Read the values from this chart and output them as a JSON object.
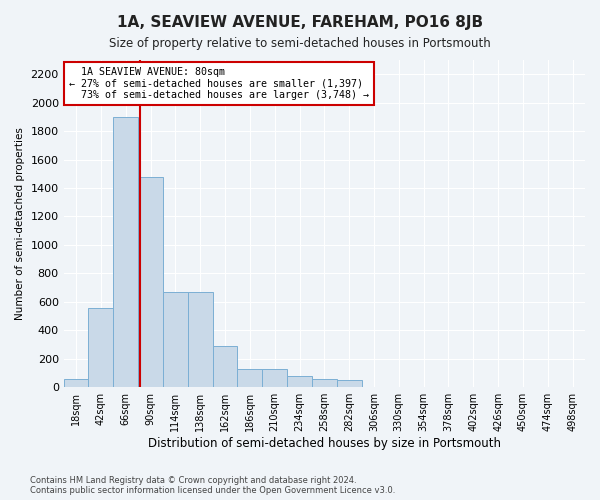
{
  "title": "1A, SEAVIEW AVENUE, FAREHAM, PO16 8JB",
  "subtitle": "Size of property relative to semi-detached houses in Portsmouth",
  "xlabel": "Distribution of semi-detached houses by size in Portsmouth",
  "ylabel": "Number of semi-detached properties",
  "footnote1": "Contains HM Land Registry data © Crown copyright and database right 2024.",
  "footnote2": "Contains public sector information licensed under the Open Government Licence v3.0.",
  "property_size": 80,
  "property_label": "1A SEAVIEW AVENUE: 80sqm",
  "smaller_pct": 27,
  "smaller_count": 1397,
  "larger_pct": 73,
  "larger_count": 3748,
  "bin_width": 24,
  "bin_starts": [
    6,
    30,
    54,
    78,
    102,
    126,
    150,
    174,
    198,
    222,
    246,
    270,
    294,
    318,
    342,
    366,
    390,
    414,
    438,
    462,
    486
  ],
  "bar_heights": [
    60,
    560,
    1900,
    1480,
    670,
    670,
    290,
    130,
    130,
    80,
    60,
    50,
    0,
    0,
    0,
    0,
    0,
    0,
    0,
    0,
    0
  ],
  "bar_color": "#c9d9e8",
  "bar_edgecolor": "#7bafd4",
  "vline_color": "#cc0000",
  "vline_x": 80,
  "ylim": [
    0,
    2300
  ],
  "yticks": [
    0,
    200,
    400,
    600,
    800,
    1000,
    1200,
    1400,
    1600,
    1800,
    2000,
    2200
  ],
  "bg_color": "#f0f4f8",
  "plot_bg_color": "#f0f4f8",
  "annotation_box_color": "#ffffff",
  "annotation_box_edgecolor": "#cc0000"
}
